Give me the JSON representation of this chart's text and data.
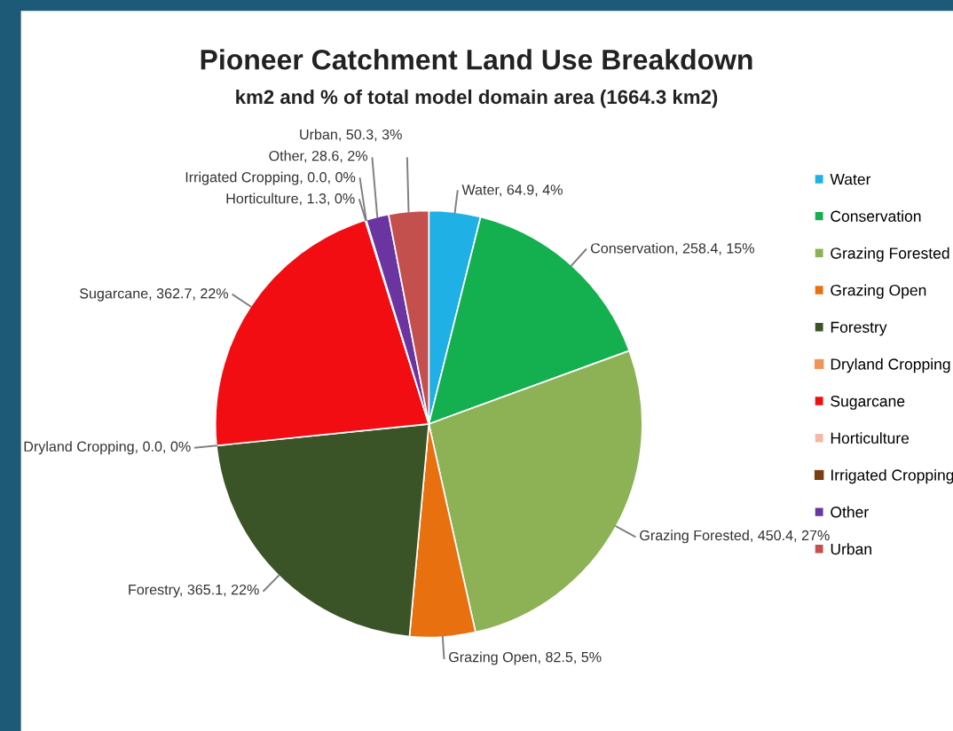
{
  "chart_data": {
    "type": "pie",
    "title": "Pioneer Catchment Land Use Breakdown",
    "subtitle": "km2 and % of total model domain area (1664.3 km2)",
    "categories": [
      "Water",
      "Conservation",
      "Grazing Forested",
      "Grazing Open",
      "Forestry",
      "Dryland Cropping",
      "Sugarcane",
      "Horticulture",
      "Irrigated Cropping",
      "Other",
      "Urban"
    ],
    "values": [
      64.9,
      258.4,
      450.4,
      82.5,
      365.1,
      0.0,
      362.7,
      1.3,
      0.0,
      28.6,
      50.3
    ],
    "value_labels": [
      "Water, 64.9, 4%",
      "Conservation, 258.4, 15%",
      "Grazing Forested, 450.4, 27%",
      "Grazing Open, 82.5, 5%",
      "Forestry, 365.1, 22%",
      "Dryland Cropping, 0.0, 0%",
      "Sugarcane, 362.7, 22%",
      "Horticulture, 1.3, 0%",
      "Irrigated Cropping, 0.0, 0%",
      "Other, 28.6, 2%",
      "Urban, 50.3, 3%"
    ],
    "colors": [
      "#1fb0e6",
      "#14b050",
      "#8db255",
      "#e8700f",
      "#3b5427",
      "#f0955a",
      "#f20d12",
      "#f4b8a4",
      "#7a3e10",
      "#6a35a0",
      "#c4504e"
    ],
    "legend": "right"
  }
}
